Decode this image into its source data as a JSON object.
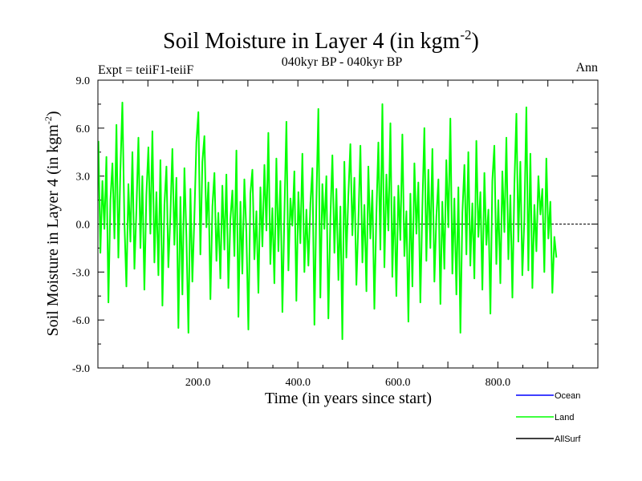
{
  "chart_data": {
    "type": "line",
    "title": "Soil Moisture in Layer 4 (in kgm",
    "title_exponent": "-2",
    "title_close": ")",
    "subtitle": "040kyr BP - 040kyr BP",
    "left_label": "Expt = teiiF1-teiiF",
    "right_label": "Ann",
    "xlabel": "Time (in years since start)",
    "ylabel": "Soil Moisture in Layer 4 (in kgm",
    "ylabel_exponent": "-2",
    "ylabel_close": ")",
    "xlim": [
      0,
      1000
    ],
    "ylim": [
      -9,
      9
    ],
    "xticks": [
      200,
      400,
      600,
      800
    ],
    "xtick_labels": [
      "200.0",
      "400.0",
      "600.0",
      "800.0"
    ],
    "yticks": [
      -9,
      -6,
      -3,
      0,
      3,
      6,
      9
    ],
    "ytick_labels": [
      "-9.0",
      "-6.0",
      "-3.0",
      "0.0",
      "3.0",
      "6.0",
      "9.0"
    ],
    "zero_line": true,
    "series": [
      {
        "name": "Ocean",
        "color": "#0000ff",
        "values": []
      },
      {
        "name": "Land",
        "color": "#00ff00",
        "x_start": 1,
        "x_step": 4,
        "values": [
          5.2,
          -1.8,
          2.7,
          -0.3,
          4.2,
          -4.9,
          1.5,
          3.8,
          -0.9,
          6.2,
          -2.1,
          3.3,
          7.6,
          0.2,
          -3.9,
          2.5,
          -1.1,
          4.5,
          -2.8,
          0.9,
          5.4,
          -1.5,
          3.0,
          -4.1,
          1.8,
          4.8,
          -0.6,
          5.8,
          -2.4,
          2.0,
          -3.2,
          4.0,
          -5.1,
          1.2,
          3.6,
          -2.7,
          0.5,
          4.7,
          -1.3,
          2.9,
          -6.5,
          1.7,
          -4.4,
          3.5,
          -0.8,
          -6.8,
          2.2,
          -3.6,
          0.4,
          5.1,
          7.0,
          -1.9,
          3.9,
          5.5,
          -0.2,
          2.6,
          -4.7,
          1.1,
          3.2,
          -2.3,
          0.7,
          -3.4,
          2.4,
          -1.6,
          3.1,
          -4.0,
          0.3,
          2.1,
          -2.0,
          4.6,
          -5.8,
          1.4,
          -3.1,
          2.8,
          -0.5,
          -6.6,
          1.9,
          3.4,
          -2.2,
          0.8,
          -4.3,
          2.3,
          -1.4,
          3.7,
          -0.4,
          5.7,
          -2.5,
          1.0,
          -3.7,
          4.1,
          -1.7,
          2.7,
          -5.5,
          0.6,
          6.4,
          -2.9,
          1.6,
          -0.1,
          3.3,
          -4.8,
          2.0,
          -1.2,
          4.4,
          -3.0,
          0.9,
          -2.6,
          1.3,
          3.5,
          -6.3,
          1.5,
          7.2,
          -4.6,
          2.5,
          -0.3,
          3.0,
          -5.9,
          0.4,
          4.3,
          -1.8,
          2.2,
          -3.5,
          1.1,
          -7.2,
          3.9,
          -2.1,
          1.8,
          5.0,
          -0.7,
          2.9,
          -3.8,
          0.2,
          4.9,
          -2.4,
          1.2,
          -4.2,
          3.6,
          -0.9,
          2.1,
          -5.3,
          0.6,
          5.1,
          -1.6,
          7.5,
          -2.7,
          3.1,
          -0.4,
          6.3,
          -3.3,
          1.7,
          -4.5,
          2.4,
          -1.0,
          5.6,
          -2.0,
          0.8,
          -6.1,
          1.9,
          -3.9,
          3.8,
          -0.6,
          2.6,
          -4.9,
          1.0,
          6.0,
          -2.3,
          3.4,
          -1.5,
          4.7,
          -3.6,
          0.5,
          2.8,
          -5.0,
          1.4,
          -2.8,
          4.0,
          -0.2,
          6.6,
          -3.1,
          1.6,
          -4.4,
          2.3,
          -6.8,
          0.7,
          3.7,
          -1.9,
          4.5,
          -2.6,
          1.3,
          -3.4,
          5.2,
          -0.8,
          2.0,
          -4.1,
          3.2,
          -1.3,
          0.9,
          -5.6,
          2.7,
          4.9,
          -2.5,
          1.5,
          -3.7,
          3.3,
          -0.5,
          5.4,
          -2.2,
          1.8,
          -4.6,
          2.5,
          6.9,
          -1.1,
          3.9,
          -3.2,
          0.3,
          7.3,
          -2.9,
          4.4,
          -4.0,
          1.2,
          -1.7,
          3.0,
          0.6,
          2.2,
          -3.0,
          4.1,
          -0.9,
          1.4,
          -4.3,
          -0.8,
          -2.1
        ]
      },
      {
        "name": "AllSurf",
        "color": "#000000",
        "values": []
      }
    ],
    "legend_position": "bottom-right"
  }
}
